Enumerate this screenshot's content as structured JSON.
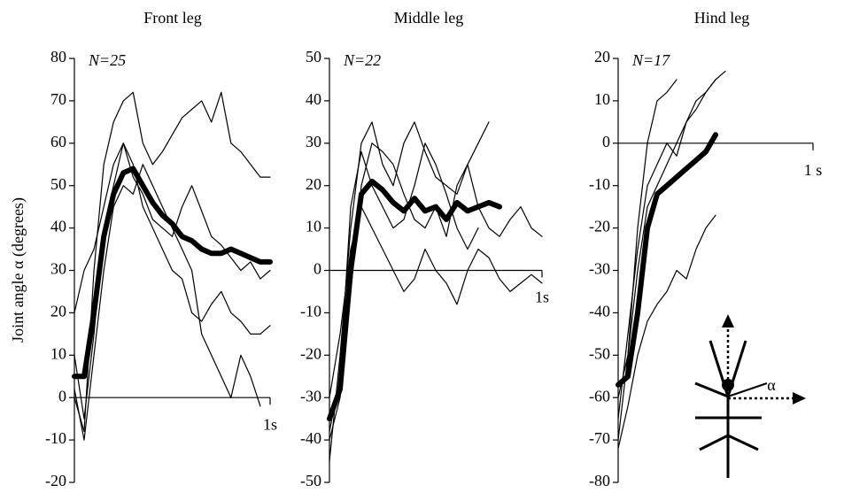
{
  "ylabel": "Joint angle α (degrees)",
  "inset_label": "α",
  "chart_data": [
    {
      "type": "line",
      "title": "Front leg",
      "annotation": "N=25",
      "x": [
        0,
        0.05,
        0.1,
        0.15,
        0.2,
        0.25,
        0.3,
        0.35,
        0.4,
        0.45,
        0.5,
        0.55,
        0.6,
        0.65,
        0.7,
        0.75,
        0.8,
        0.85,
        0.9,
        0.95,
        1.0
      ],
      "series": [
        {
          "color": "#000000",
          "values": [
            5,
            5,
            20,
            38,
            48,
            53,
            54,
            50,
            46,
            43,
            41,
            38,
            37,
            35,
            34,
            34,
            35,
            34,
            33,
            32,
            32
          ]
        },
        {
          "color": "#000000",
          "values": [
            0,
            -8,
            30,
            55,
            65,
            70,
            72,
            60,
            55,
            58,
            62,
            66,
            68,
            70,
            65,
            72,
            60,
            58,
            55,
            52,
            52
          ]
        },
        {
          "color": "#000000",
          "values": [
            10,
            -5,
            15,
            40,
            50,
            60,
            55,
            45,
            40,
            35,
            30,
            28,
            20,
            18,
            22,
            25,
            20,
            18,
            15,
            15,
            17
          ]
        },
        {
          "color": "#000000",
          "values": [
            2,
            -10,
            10,
            30,
            45,
            50,
            48,
            55,
            50,
            45,
            40,
            35,
            30,
            15,
            10,
            5,
            0,
            10,
            5,
            -2,
            null
          ]
        },
        {
          "color": "#000000",
          "values": [
            20,
            30,
            35,
            45,
            55,
            60,
            52,
            48,
            42,
            40,
            38,
            45,
            50,
            44,
            38,
            36,
            33,
            30,
            32,
            28,
            30
          ]
        }
      ],
      "xlim": [
        0,
        1
      ],
      "xticks": [
        {
          "value": 1,
          "label": "1s"
        }
      ],
      "ylim": [
        -20,
        80
      ],
      "yticks": [
        -20,
        -10,
        0,
        10,
        20,
        30,
        40,
        50,
        60,
        70,
        80
      ]
    },
    {
      "type": "line",
      "title": "Middle leg",
      "annotation": "N=22",
      "x": [
        0,
        0.05,
        0.1,
        0.15,
        0.2,
        0.25,
        0.3,
        0.35,
        0.4,
        0.45,
        0.5,
        0.55,
        0.6,
        0.65,
        0.7,
        0.75,
        0.8,
        0.85,
        0.9,
        0.95,
        1.0
      ],
      "series": [
        {
          "color": "#000000",
          "values": [
            -35,
            -28,
            0,
            18,
            21,
            19,
            16,
            14,
            17,
            14,
            15,
            12,
            16,
            14,
            15,
            16,
            15,
            null,
            null,
            null,
            null
          ]
        },
        {
          "color": "#000000",
          "values": [
            -45,
            -20,
            10,
            30,
            35,
            25,
            20,
            30,
            35,
            28,
            22,
            20,
            18,
            25,
            30,
            35,
            null,
            null,
            null,
            null,
            null
          ]
        },
        {
          "color": "#000000",
          "values": [
            -30,
            -15,
            5,
            15,
            10,
            5,
            0,
            -5,
            -2,
            5,
            0,
            -3,
            -8,
            0,
            5,
            3,
            -2,
            -5,
            -3,
            -1,
            -3
          ]
        },
        {
          "color": "#000000",
          "values": [
            -40,
            -30,
            -5,
            20,
            30,
            28,
            25,
            18,
            12,
            10,
            15,
            8,
            20,
            25,
            15,
            10,
            8,
            12,
            15,
            10,
            8
          ]
        },
        {
          "color": "#000000",
          "values": [
            -38,
            -25,
            15,
            28,
            20,
            15,
            10,
            12,
            20,
            30,
            25,
            18,
            10,
            5,
            10,
            null,
            null,
            null,
            null,
            null,
            null
          ]
        }
      ],
      "xlim": [
        0,
        1
      ],
      "xticks": [
        {
          "value": 1,
          "label": "1s"
        }
      ],
      "ylim": [
        -50,
        50
      ],
      "yticks": [
        -50,
        -40,
        -30,
        -20,
        -10,
        0,
        10,
        20,
        30,
        40,
        50
      ]
    },
    {
      "type": "line",
      "title": "Hind leg",
      "annotation": "N=17",
      "x": [
        0,
        0.05,
        0.1,
        0.15,
        0.2,
        0.25,
        0.3,
        0.35,
        0.4,
        0.45,
        0.5,
        0.55,
        0.6,
        0.65,
        0.7,
        0.75,
        0.8,
        0.85,
        0.9,
        0.95,
        1.0
      ],
      "series": [
        {
          "color": "#000000",
          "values": [
            -57,
            -55,
            -40,
            -20,
            -12,
            -10,
            -8,
            -6,
            -4,
            -2,
            2,
            null,
            null,
            null,
            null,
            null,
            null,
            null,
            null,
            null,
            null
          ]
        },
        {
          "color": "#000000",
          "values": [
            -70,
            -50,
            -20,
            0,
            10,
            12,
            15,
            null,
            null,
            null,
            null,
            null,
            null,
            null,
            null,
            null,
            null,
            null,
            null,
            null,
            null
          ]
        },
        {
          "color": "#000000",
          "values": [
            -65,
            -45,
            -25,
            -10,
            -5,
            0,
            -3,
            5,
            8,
            12,
            15,
            null,
            null,
            null,
            null,
            null,
            null,
            null,
            null,
            null,
            null
          ]
        },
        {
          "color": "#000000",
          "values": [
            -72,
            -62,
            -50,
            -42,
            -38,
            -35,
            -30,
            -32,
            -25,
            -20,
            -17,
            null,
            null,
            null,
            null,
            null,
            null,
            null,
            null,
            null,
            null
          ]
        },
        {
          "color": "#000000",
          "values": [
            -60,
            -50,
            -30,
            -15,
            -10,
            -5,
            0,
            5,
            10,
            12,
            15,
            17,
            null,
            null,
            null,
            null,
            null,
            null,
            null,
            null,
            null
          ]
        }
      ],
      "xlim": [
        0,
        1
      ],
      "xticks": [
        {
          "value": 1,
          "label": "1 s"
        }
      ],
      "ylim": [
        -80,
        20
      ],
      "yticks": [
        -80,
        -70,
        -60,
        -50,
        -40,
        -30,
        -20,
        -10,
        0,
        10,
        20
      ]
    }
  ]
}
